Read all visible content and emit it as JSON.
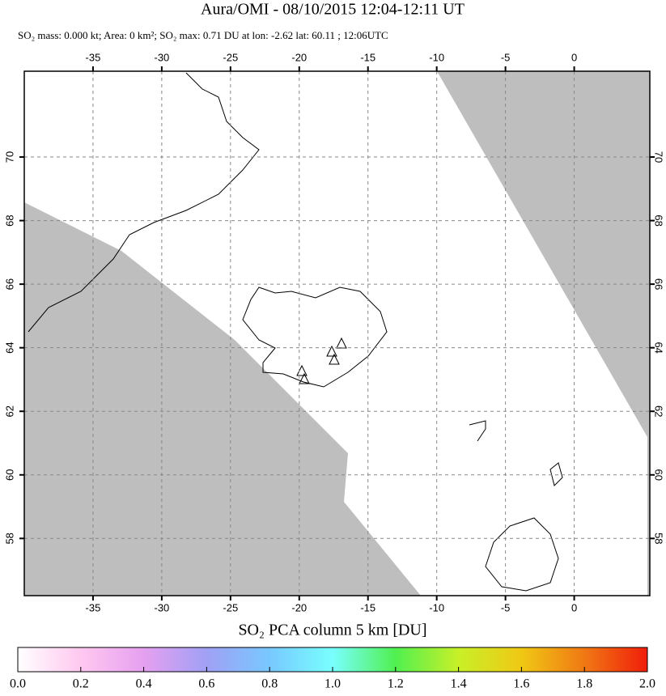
{
  "title": "Aura/OMI - 08/10/2015 12:04-12:11 UT",
  "subtitle": "SO₂ mass: 0.000 kt; Area: 0 km²; SO₂ max: 0.71 DU at lon: -2.62 lat: 60.11 ; 12:06UTC",
  "map": {
    "xlim": [
      -40,
      5.5
    ],
    "ylim": [
      56.2,
      72.7
    ],
    "xticks": [
      -35,
      -30,
      -25,
      -20,
      -15,
      -10,
      -5,
      0
    ],
    "yticks": [
      58,
      60,
      62,
      64,
      66,
      68,
      70
    ],
    "grid": true,
    "land_color": "#bebebe",
    "swath_color": "#ffffff"
  },
  "colorbar": {
    "label": "SO₂ PCA column 5 km [DU]",
    "lim": [
      0,
      2
    ],
    "ticks": [
      {
        "value": 0,
        "label": "0.0"
      },
      0.2,
      0.4,
      0.6,
      0.8,
      {
        "value": 1,
        "label": "1.0"
      },
      1.2,
      1.4,
      1.6,
      1.8,
      {
        "value": 2,
        "label": "2.0"
      }
    ],
    "colors": [
      "#ffffff",
      "#ffc8f0",
      "#e6a0f0",
      "#a0a0f5",
      "#78c8ff",
      "#78ffff",
      "#50f050",
      "#c8f028",
      "#f0c814",
      "#f07814",
      "#f01e0a"
    ]
  }
}
